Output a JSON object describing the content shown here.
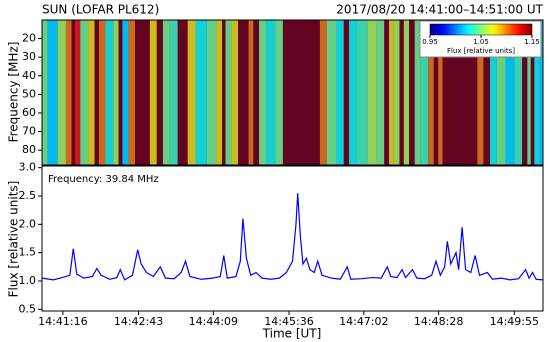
{
  "chart_data": [
    {
      "type": "heatmap",
      "title": "SUN (LOFAR PL612)",
      "subtitle": "2017/08/20  14:41:00–14:51:00 UT",
      "ylabel": "Frequency [MHz]",
      "ylim": [
        88,
        10
      ],
      "yticks": [
        20,
        30,
        40,
        50,
        60,
        70,
        80
      ],
      "colormap": "jet",
      "colorbar": {
        "label": "Flux [relative units]",
        "lim": [
          0.95,
          1.15
        ],
        "ticks": [
          0.95,
          1.05,
          1.15
        ]
      }
    },
    {
      "type": "line",
      "annotation": "Frequency: 39.84 MHz",
      "xlabel": "Time [UT]",
      "ylabel": "Flux [relative units]",
      "color": "#0000ff",
      "xlim": [
        "14:40:52",
        "14:50:28"
      ],
      "xticks": [
        "14:41:16",
        "14:42:43",
        "14:44:09",
        "14:45:36",
        "14:47:02",
        "14:48:28",
        "14:49:55"
      ],
      "ylim": [
        0.47,
        3.03
      ],
      "yticks": [
        0.5,
        {
          "value": 1,
          "label": "1.0"
        },
        1.5,
        {
          "value": 2,
          "label": "2.0"
        },
        2.5,
        {
          "value": 3,
          "label": "3.0"
        }
      ],
      "x": [
        "14:40:52",
        "14:41:05",
        "14:41:15",
        "14:41:24",
        "14:41:28",
        "14:41:32",
        "14:41:40",
        "14:41:50",
        "14:41:55",
        "14:42:00",
        "14:42:10",
        "14:42:18",
        "14:42:22",
        "14:42:27",
        "14:42:36",
        "14:42:42",
        "14:42:46",
        "14:42:52",
        "14:43:00",
        "14:43:08",
        "14:43:14",
        "14:43:24",
        "14:43:32",
        "14:43:37",
        "14:43:42",
        "14:43:55",
        "14:44:08",
        "14:44:17",
        "14:44:21",
        "14:44:25",
        "14:44:35",
        "14:44:40",
        "14:44:43",
        "14:44:47",
        "14:44:52",
        "14:44:58",
        "14:45:05",
        "14:45:15",
        "14:45:25",
        "14:45:33",
        "14:45:40",
        "14:45:44",
        "14:45:46",
        "14:45:49",
        "14:45:52",
        "14:45:56",
        "14:46:00",
        "14:46:05",
        "14:46:09",
        "14:46:14",
        "14:46:25",
        "14:46:35",
        "14:46:43",
        "14:46:47",
        "14:47:00",
        "14:47:12",
        "14:47:22",
        "14:47:29",
        "14:47:33",
        "14:47:40",
        "14:47:46",
        "14:47:50",
        "14:47:58",
        "14:48:03",
        "14:48:12",
        "14:48:20",
        "14:48:25",
        "14:48:30",
        "14:48:35",
        "14:48:38",
        "14:48:42",
        "14:48:48",
        "14:48:51",
        "14:48:55",
        "14:48:59",
        "14:49:05",
        "14:49:10",
        "14:49:15",
        "14:49:24",
        "14:49:30",
        "14:49:40",
        "14:49:50",
        "14:50:00",
        "14:50:08",
        "14:50:12",
        "14:50:16",
        "14:50:20",
        "14:50:28"
      ],
      "values": [
        1.05,
        1.02,
        1.06,
        1.1,
        1.57,
        1.12,
        1.05,
        1.08,
        1.22,
        1.1,
        1.03,
        1.06,
        1.2,
        1.02,
        1.1,
        1.55,
        1.3,
        1.15,
        1.08,
        1.25,
        1.05,
        1.04,
        1.15,
        1.35,
        1.08,
        1.03,
        1.05,
        1.08,
        1.45,
        1.05,
        1.08,
        1.35,
        2.1,
        1.4,
        1.1,
        1.15,
        1.05,
        1.03,
        1.05,
        1.15,
        1.35,
        2.0,
        2.55,
        1.8,
        1.3,
        1.4,
        1.2,
        1.15,
        1.35,
        1.1,
        1.05,
        1.03,
        1.25,
        1.03,
        1.04,
        1.06,
        1.05,
        1.25,
        1.08,
        1.06,
        1.2,
        1.06,
        1.2,
        1.05,
        1.04,
        1.1,
        1.35,
        1.1,
        1.25,
        1.7,
        1.3,
        1.5,
        1.2,
        1.95,
        1.2,
        1.15,
        1.45,
        1.1,
        1.15,
        1.03,
        1.05,
        1.02,
        1.04,
        1.2,
        1.05,
        1.15,
        1.03,
        1.02
      ]
    }
  ]
}
